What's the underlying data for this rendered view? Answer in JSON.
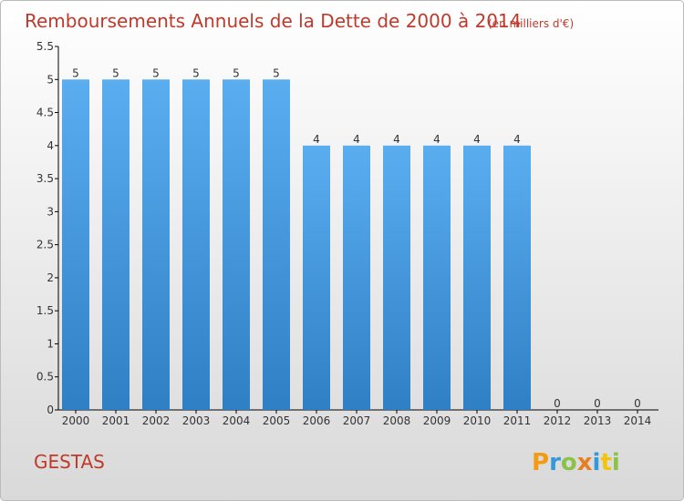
{
  "title": "Remboursements Annuels de la Dette de 2000 à 2014",
  "subtitle": "(en milliers d'€)",
  "location": "GESTAS",
  "brand": {
    "letters": [
      "P",
      "r",
      "o",
      "x",
      "i",
      "t",
      "i"
    ],
    "colors": [
      "#f39c12",
      "#3498db",
      "#8bc34a",
      "#e67e22",
      "#3498db",
      "#f1c40f",
      "#8bc34a"
    ]
  },
  "colors": {
    "title": "#c0392b",
    "bar": "#4a9fe0",
    "axis": "#000000",
    "background_top": "#ffffff",
    "background_bottom": "#dcdcdc"
  },
  "chart_data": {
    "type": "bar",
    "categories": [
      "2000",
      "2001",
      "2002",
      "2003",
      "2004",
      "2005",
      "2006",
      "2007",
      "2008",
      "2009",
      "2010",
      "2011",
      "2012",
      "2013",
      "2014"
    ],
    "values": [
      5,
      5,
      5,
      5,
      5,
      5,
      4,
      4,
      4,
      4,
      4,
      4,
      0,
      0,
      0
    ],
    "value_labels": [
      "5",
      "5",
      "5",
      "5",
      "5",
      "5",
      "4",
      "4",
      "4",
      "4",
      "4",
      "4",
      "0",
      "0",
      "0"
    ],
    "yticks": [
      "0",
      "0.5",
      "1",
      "1.5",
      "2",
      "2.5",
      "3",
      "3.5",
      "4",
      "4.5",
      "5",
      "5.5"
    ],
    "ylim": [
      0,
      5.5
    ],
    "grid": false,
    "legend": "none"
  }
}
